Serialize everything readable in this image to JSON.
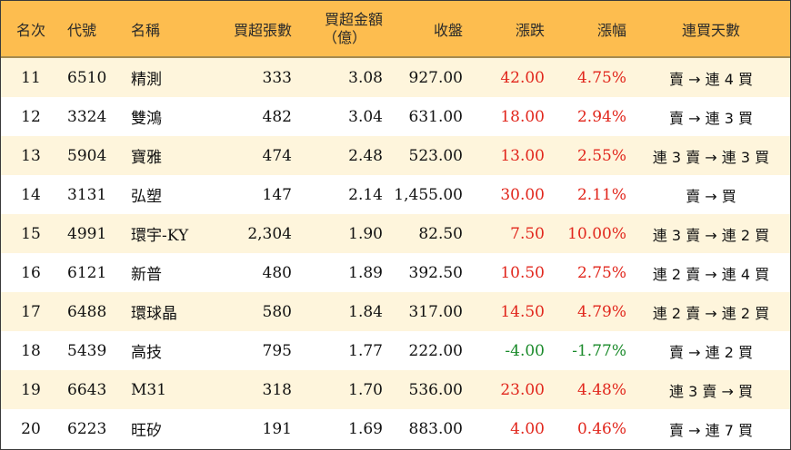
{
  "headers": {
    "rank": "名次",
    "code": "代號",
    "name": "名稱",
    "buy_volume": "買超張數",
    "buy_amount_line1": "買超金額",
    "buy_amount_line2": "（億）",
    "close": "收盤",
    "change": "漲跌",
    "pct": "漲幅",
    "streak": "連買天數"
  },
  "rows": [
    {
      "rank": "11",
      "code": "6510",
      "name": "精測",
      "buy_volume": "333",
      "buy_amount": "3.08",
      "close": "927.00",
      "change": "42.00",
      "pct": "4.75%",
      "dir": "up",
      "streak": "賣 → 連 4 買"
    },
    {
      "rank": "12",
      "code": "3324",
      "name": "雙鴻",
      "buy_volume": "482",
      "buy_amount": "3.04",
      "close": "631.00",
      "change": "18.00",
      "pct": "2.94%",
      "dir": "up",
      "streak": "賣 → 連 3 買"
    },
    {
      "rank": "13",
      "code": "5904",
      "name": "寶雅",
      "buy_volume": "474",
      "buy_amount": "2.48",
      "close": "523.00",
      "change": "13.00",
      "pct": "2.55%",
      "dir": "up",
      "streak": "連 3 賣 → 連 3 買"
    },
    {
      "rank": "14",
      "code": "3131",
      "name": "弘塑",
      "buy_volume": "147",
      "buy_amount": "2.14",
      "close": "1,455.00",
      "change": "30.00",
      "pct": "2.11%",
      "dir": "up",
      "streak": "賣 → 買"
    },
    {
      "rank": "15",
      "code": "4991",
      "name": "環宇-KY",
      "buy_volume": "2,304",
      "buy_amount": "1.90",
      "close": "82.50",
      "change": "7.50",
      "pct": "10.00%",
      "dir": "up",
      "streak": "連 3 賣 → 連 2 買"
    },
    {
      "rank": "16",
      "code": "6121",
      "name": "新普",
      "buy_volume": "480",
      "buy_amount": "1.89",
      "close": "392.50",
      "change": "10.50",
      "pct": "2.75%",
      "dir": "up",
      "streak": "連 2 賣 → 連 4 買"
    },
    {
      "rank": "17",
      "code": "6488",
      "name": "環球晶",
      "buy_volume": "580",
      "buy_amount": "1.84",
      "close": "317.00",
      "change": "14.50",
      "pct": "4.79%",
      "dir": "up",
      "streak": "連 2 賣 → 連 2 買"
    },
    {
      "rank": "18",
      "code": "5439",
      "name": "高技",
      "buy_volume": "795",
      "buy_amount": "1.77",
      "close": "222.00",
      "change": "-4.00",
      "pct": "-1.77%",
      "dir": "down",
      "streak": "賣 → 連 2 買"
    },
    {
      "rank": "19",
      "code": "6643",
      "name": "M31",
      "buy_volume": "318",
      "buy_amount": "1.70",
      "close": "536.00",
      "change": "23.00",
      "pct": "4.48%",
      "dir": "up",
      "streak": "連 3 賣 → 買"
    },
    {
      "rank": "20",
      "code": "6223",
      "name": "旺矽",
      "buy_volume": "191",
      "buy_amount": "1.69",
      "close": "883.00",
      "change": "4.00",
      "pct": "0.46%",
      "dir": "up",
      "streak": "賣 → 連 7 買"
    }
  ],
  "colors": {
    "header_bg": "#fdbd4f",
    "odd_row_bg": "#fef5dc",
    "even_row_bg": "#ffffff",
    "up": "#e1261c",
    "down": "#1a8a2a"
  }
}
